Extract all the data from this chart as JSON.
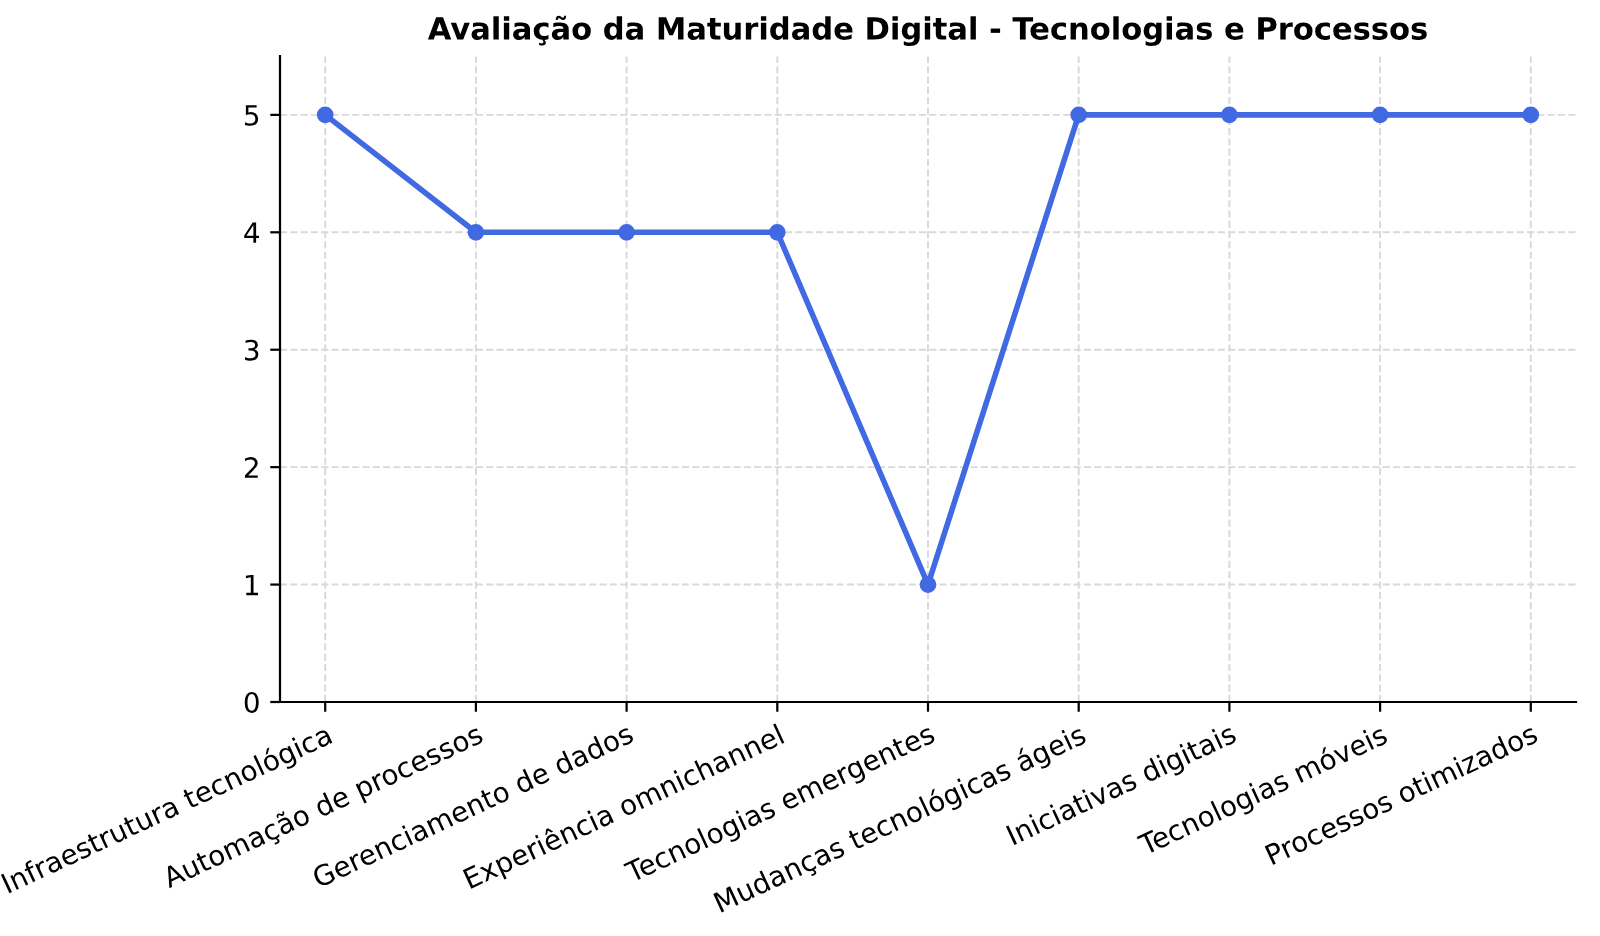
{
  "chart_data": {
    "type": "line",
    "title": "Avaliação da Maturidade Digital - Tecnologias e Processos",
    "categories": [
      "Infraestrutura tecnológica",
      "Automação de processos",
      "Gerenciamento de dados",
      "Experiência omnichannel",
      "Tecnologias emergentes",
      "Mudanças tecnológicas ágeis",
      "Iniciativas digitais",
      "Tecnologias móveis",
      "Processos otimizados"
    ],
    "values": [
      5,
      4,
      4,
      4,
      1,
      5,
      5,
      5,
      5
    ],
    "color": "#4169e1",
    "marker": "circle",
    "line_style": "solid",
    "ylim": [
      0,
      5.5
    ],
    "yticks": [
      0,
      1,
      2,
      3,
      4,
      5
    ],
    "grid": true
  }
}
